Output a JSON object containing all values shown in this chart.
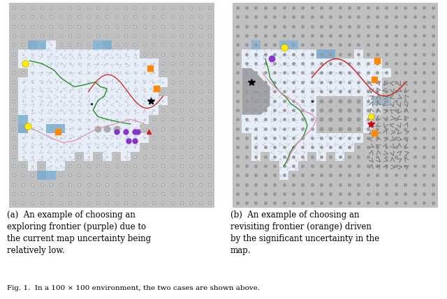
{
  "fig_width": 6.4,
  "fig_height": 4.29,
  "dpi": 100,
  "bg_color": "#ffffff",
  "panel_bg": "#c8c8c8",
  "explored_color": "#eef2f8",
  "blue_cell_color": "#8ab4d4",
  "gray_dot_color": "#a0a0a0",
  "dark_dot_color": "#888888",
  "arrow_color_small": "#b0b0b0",
  "arrow_color_large": "#909090",
  "green_path_color": "#2a8a2a",
  "pink_path_color": "#e090b0",
  "red_path_color": "#cc3333",
  "orange_marker_color": "#ff8800",
  "yellow_robot_color": "#ffee00",
  "purple_frontier_color": "#8833cc",
  "red_frontier_color": "#cc2222",
  "star_color": "#000000",
  "gray_uncertainty_color": "#909090",
  "caption_fontsize": 8.5,
  "fig_caption_fontsize": 7.5,
  "caption_a_lines": [
    "(a)  An example of choosing an",
    "exploring frontier (purple) due to",
    "the current map uncertainty being",
    "relatively low."
  ],
  "caption_b_lines": [
    "(b)  An example of choosing an",
    "revisiting frontier (orange) driven",
    "by the significant uncertainty in the",
    "map."
  ]
}
